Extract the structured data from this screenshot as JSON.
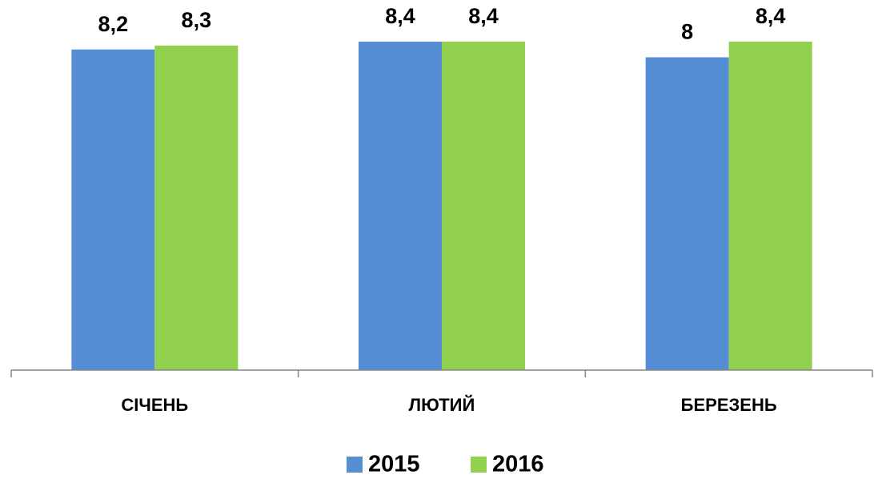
{
  "chart_data": {
    "type": "bar",
    "categories": [
      "СІЧЕНЬ",
      "ЛЮТИЙ",
      "БЕРЕЗЕНЬ"
    ],
    "series": [
      {
        "name": "2015",
        "color": "#558ed5",
        "values": [
          8.2,
          8.4,
          8
        ],
        "value_labels": [
          "8,2",
          "8,4",
          "8"
        ]
      },
      {
        "name": "2016",
        "color": "#92d050",
        "values": [
          8.3,
          8.4,
          8.4
        ],
        "value_labels": [
          "8,3",
          "8,4",
          "8,4"
        ]
      }
    ],
    "legend": "bottom"
  }
}
